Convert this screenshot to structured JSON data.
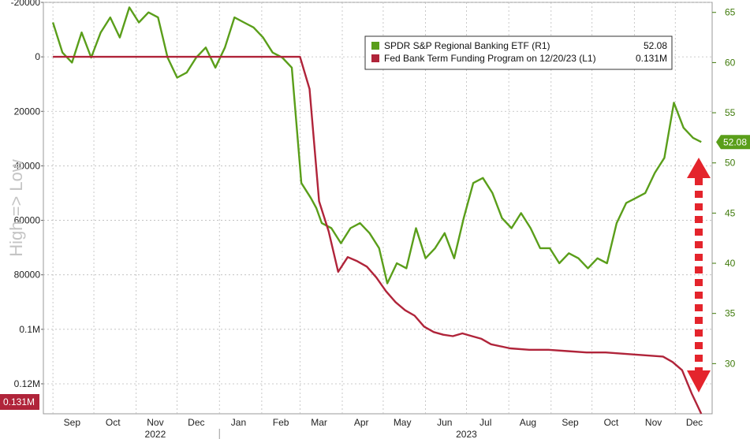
{
  "chart_data": {
    "type": "line",
    "title": "",
    "annotation_left": "High => Low",
    "x_month_labels": [
      "Sep",
      "Oct",
      "Nov",
      "Dec",
      "Jan",
      "Feb",
      "Mar",
      "Apr",
      "May",
      "Jun",
      "Jul",
      "Aug",
      "Sep",
      "Oct",
      "Nov",
      "Dec"
    ],
    "x_year_labels": [
      "2022",
      "2023"
    ],
    "left_axis": {
      "inverted": true,
      "ylim": [
        -20000,
        131000
      ],
      "ticks": [
        -20000,
        0,
        20000,
        40000,
        60000,
        80000,
        100000,
        120000
      ],
      "tick_labels": [
        "-20000",
        "0",
        "20000",
        "40000",
        "60000",
        "80000",
        "0.1M",
        "0.12M"
      ]
    },
    "right_axis": {
      "ylim": [
        25,
        66
      ],
      "ticks": [
        30,
        35,
        40,
        45,
        50,
        55,
        60,
        65
      ],
      "tick_labels": [
        "30",
        "35",
        "40",
        "45",
        "50",
        "55",
        "60",
        "65"
      ]
    },
    "legend": {
      "placement": "top-right",
      "entries": [
        {
          "label": "SPDR S&P Regional Banking ETF (R1)",
          "value": "52.08",
          "color": "#5a9e1a"
        },
        {
          "label": "Fed Bank Term Funding Program on 12/20/23 (L1)",
          "value": "0.131M",
          "color": "#b0243a"
        }
      ]
    },
    "last_value_tags": {
      "right": {
        "text": "52.08",
        "color": "#5a9e1a"
      },
      "left": {
        "text": "0.131M",
        "color": "#b0243a"
      }
    },
    "series": [
      {
        "name": "SPDR S&P Regional Banking ETF (R1)",
        "axis": "right",
        "color": "#5a9e1a",
        "x": [
          "2022-09-01",
          "2022-09-08",
          "2022-09-15",
          "2022-09-22",
          "2022-09-29",
          "2022-10-06",
          "2022-10-13",
          "2022-10-20",
          "2022-10-27",
          "2022-11-03",
          "2022-11-10",
          "2022-11-17",
          "2022-11-24",
          "2022-12-01",
          "2022-12-08",
          "2022-12-15",
          "2022-12-22",
          "2022-12-29",
          "2023-01-05",
          "2023-01-12",
          "2023-01-19",
          "2023-01-26",
          "2023-02-02",
          "2023-02-09",
          "2023-02-16",
          "2023-02-23",
          "2023-03-02",
          "2023-03-09",
          "2023-03-13",
          "2023-03-17",
          "2023-03-24",
          "2023-03-31",
          "2023-04-07",
          "2023-04-14",
          "2023-04-21",
          "2023-04-28",
          "2023-05-04",
          "2023-05-11",
          "2023-05-18",
          "2023-05-25",
          "2023-06-01",
          "2023-06-08",
          "2023-06-15",
          "2023-06-22",
          "2023-06-29",
          "2023-07-06",
          "2023-07-13",
          "2023-07-20",
          "2023-07-27",
          "2023-08-03",
          "2023-08-10",
          "2023-08-17",
          "2023-08-24",
          "2023-08-31",
          "2023-09-07",
          "2023-09-14",
          "2023-09-21",
          "2023-09-28",
          "2023-10-05",
          "2023-10-12",
          "2023-10-19",
          "2023-10-26",
          "2023-11-02",
          "2023-11-09",
          "2023-11-16",
          "2023-11-23",
          "2023-11-30",
          "2023-12-07",
          "2023-12-14",
          "2023-12-20"
        ],
        "values": [
          64.0,
          61.0,
          60.0,
          63.0,
          60.5,
          63.0,
          64.5,
          62.5,
          65.5,
          64.0,
          65.0,
          64.5,
          60.5,
          58.5,
          59.0,
          60.5,
          61.5,
          59.5,
          61.5,
          64.5,
          64.0,
          63.5,
          62.5,
          61.0,
          60.5,
          59.5,
          48.0,
          46.5,
          45.5,
          44.0,
          43.5,
          42.0,
          43.5,
          44.0,
          43.0,
          41.5,
          38.0,
          40.0,
          39.5,
          43.5,
          40.5,
          41.5,
          43.0,
          40.5,
          44.5,
          48.0,
          48.5,
          47.0,
          44.5,
          43.5,
          45.0,
          43.5,
          41.5,
          41.5,
          40.0,
          41.0,
          40.5,
          39.5,
          40.5,
          40.0,
          44.0,
          46.0,
          46.5,
          47.0,
          49.0,
          50.5,
          56.0,
          53.5,
          52.5,
          52.08
        ]
      },
      {
        "name": "Fed Bank Term Funding Program on 12/20/23 (L1)",
        "axis": "left",
        "color": "#b0243a",
        "x": [
          "2022-09-01",
          "2022-10-01",
          "2022-11-01",
          "2022-12-01",
          "2023-01-01",
          "2023-02-01",
          "2023-03-01",
          "2023-03-08",
          "2023-03-15",
          "2023-03-22",
          "2023-03-29",
          "2023-04-05",
          "2023-04-12",
          "2023-04-19",
          "2023-04-26",
          "2023-05-03",
          "2023-05-10",
          "2023-05-17",
          "2023-05-24",
          "2023-05-31",
          "2023-06-07",
          "2023-06-14",
          "2023-06-21",
          "2023-06-28",
          "2023-07-05",
          "2023-07-12",
          "2023-07-19",
          "2023-08-02",
          "2023-08-16",
          "2023-08-30",
          "2023-09-13",
          "2023-09-27",
          "2023-10-11",
          "2023-10-25",
          "2023-11-08",
          "2023-11-22",
          "2023-11-29",
          "2023-12-06",
          "2023-12-13",
          "2023-12-20"
        ],
        "values": [
          0,
          0,
          0,
          0,
          0,
          0,
          0,
          11800,
          53000,
          64000,
          78900,
          73500,
          75000,
          77000,
          81000,
          86000,
          90000,
          93000,
          95000,
          99000,
          101000,
          102000,
          102500,
          101500,
          102500,
          103500,
          105500,
          107000,
          107500,
          107500,
          108000,
          108500,
          108500,
          109000,
          109500,
          110000,
          112000,
          115000,
          123500,
          131000
        ]
      }
    ]
  }
}
